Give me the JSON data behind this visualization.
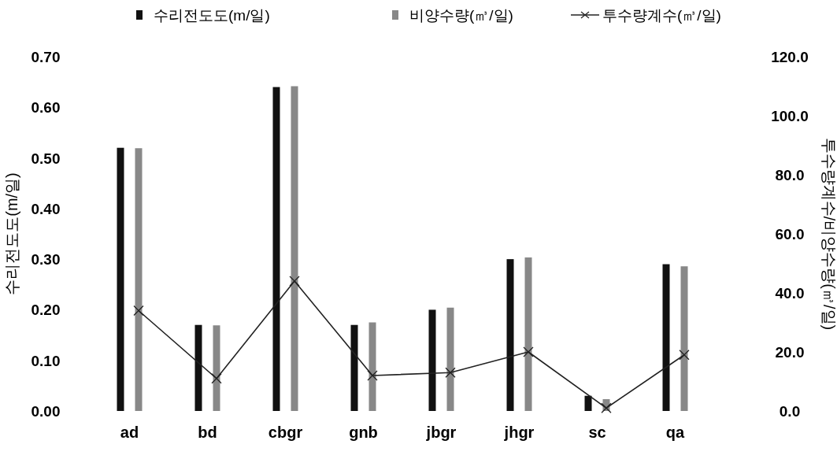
{
  "chart_data": {
    "type": "bar",
    "ylabel": "수리전도도(m/일)",
    "y2label": "투수량계수/비양수량(㎥/일)",
    "categories": [
      "ad",
      "bd",
      "cbgr",
      "gnb",
      "jbgr",
      "jhgr",
      "sc",
      "qa"
    ],
    "series": [
      {
        "name": "수리전도도(m/일)",
        "color": "#111111",
        "values": [
          0.52,
          0.17,
          0.64,
          0.17,
          0.2,
          0.3,
          0.03,
          0.29
        ]
      },
      {
        "name": "비양수량(㎥/일)",
        "color": "#888888",
        "axis": "y2",
        "values": [
          89,
          29,
          110,
          30,
          35,
          52,
          4,
          49
        ]
      },
      {
        "name": "투수량계수(㎥/일)",
        "type": "line",
        "color": "#222222",
        "axis": "y2",
        "marker": "cross",
        "values": [
          34,
          11,
          44,
          12,
          13,
          20,
          1,
          19
        ]
      }
    ],
    "ylim": [
      0,
      0.7
    ],
    "yticks": [
      {
        "value": 0,
        "label": "0.00"
      },
      {
        "value": 0.1,
        "label": "0.10"
      },
      {
        "value": 0.2,
        "label": "0.20"
      },
      {
        "value": 0.3,
        "label": "0.30"
      },
      {
        "value": 0.4,
        "label": "0.40"
      },
      {
        "value": 0.5,
        "label": "0.50"
      },
      {
        "value": 0.6,
        "label": "0.60"
      },
      {
        "value": 0.7,
        "label": "0.70"
      }
    ],
    "y2lim": [
      0,
      120
    ],
    "y2ticks": [
      {
        "value": 0,
        "label": "0.0"
      },
      {
        "value": 20,
        "label": "20.0"
      },
      {
        "value": 40,
        "label": "40.0"
      },
      {
        "value": 60,
        "label": "60.0"
      },
      {
        "value": 80,
        "label": "80.0"
      },
      {
        "value": 100,
        "label": "100.0"
      },
      {
        "value": 120,
        "label": "120.0"
      }
    ],
    "grid": false,
    "legend": "top"
  }
}
